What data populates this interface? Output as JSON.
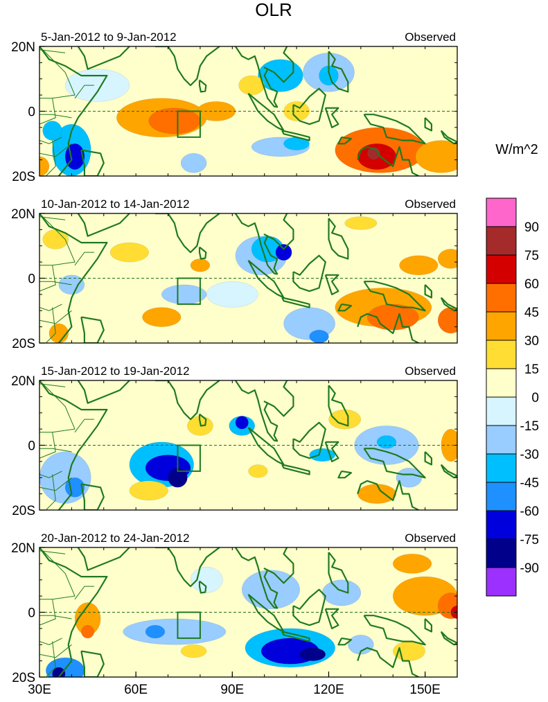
{
  "chart_data": {
    "type": "heatmap",
    "title": "OLR",
    "units": "W/m^2",
    "x_range": [
      30,
      160
    ],
    "y_range": [
      -20,
      20
    ],
    "xticks": [
      {
        "value": 30,
        "label": "30E"
      },
      {
        "value": 60,
        "label": "60E"
      },
      {
        "value": 90,
        "label": "90E"
      },
      {
        "value": 120,
        "label": "120E"
      },
      {
        "value": 150,
        "label": "150E"
      }
    ],
    "yticks": [
      {
        "value": 20,
        "label": "20N"
      },
      {
        "value": 0,
        "label": "0"
      },
      {
        "value": -20,
        "label": "20S"
      }
    ],
    "colorbar": {
      "labels": [
        "90",
        "75",
        "60",
        "45",
        "30",
        "15",
        "0",
        "-15",
        "-30",
        "-45",
        "-60",
        "-75",
        "-90"
      ],
      "colors": [
        "#ff66cc",
        "#a52a2a",
        "#d40000",
        "#ff6f00",
        "#ffa500",
        "#ffdd33",
        "#ffffcc",
        "#d6f5ff",
        "#99ccff",
        "#00bfff",
        "#1e90ff",
        "#0000dd",
        "#00008b",
        "#9b30ff"
      ]
    },
    "panels": [
      {
        "period": "5-Jan-2012 to 9-Jan-2012",
        "label": "Observed",
        "anomalies": [
          {
            "lon": 68,
            "lat": -2,
            "rx": 14,
            "ry": 6,
            "value": 30
          },
          {
            "lon": 72,
            "lat": -3,
            "rx": 8,
            "ry": 4,
            "value": 45
          },
          {
            "lon": 85,
            "lat": 0,
            "rx": 6,
            "ry": 3,
            "value": 30
          },
          {
            "lon": 136,
            "lat": -12,
            "rx": 14,
            "ry": 7,
            "value": 45
          },
          {
            "lon": 135,
            "lat": -14,
            "rx": 6,
            "ry": 4,
            "value": 60
          },
          {
            "lon": 134,
            "lat": -13,
            "rx": 2,
            "ry": 2,
            "value": 75
          },
          {
            "lon": 155,
            "lat": -14,
            "rx": 8,
            "ry": 5,
            "value": 30
          },
          {
            "lon": 30,
            "lat": -17,
            "rx": 3,
            "ry": 3,
            "value": 30
          },
          {
            "lon": 40,
            "lat": -12,
            "rx": 6,
            "ry": 8,
            "value": -45
          },
          {
            "lon": 41,
            "lat": -14,
            "rx": 3,
            "ry": 4,
            "value": -75
          },
          {
            "lon": 34,
            "lat": -6,
            "rx": 3,
            "ry": 3,
            "value": -45
          },
          {
            "lon": 105,
            "lat": 11,
            "rx": 7,
            "ry": 5,
            "value": -45
          },
          {
            "lon": 120,
            "lat": 12,
            "rx": 8,
            "ry": 6,
            "value": -30
          },
          {
            "lon": 120,
            "lat": 11,
            "rx": 3,
            "ry": 3,
            "value": -45
          },
          {
            "lon": 105,
            "lat": -11,
            "rx": 9,
            "ry": 3,
            "value": -30
          },
          {
            "lon": 110,
            "lat": -10,
            "rx": 4,
            "ry": 2,
            "value": -45
          },
          {
            "lon": 78,
            "lat": -16,
            "rx": 4,
            "ry": 3,
            "value": -30
          },
          {
            "lon": 48,
            "lat": 8,
            "rx": 10,
            "ry": 5,
            "value": -15
          },
          {
            "lon": 96,
            "lat": 8,
            "rx": 4,
            "ry": 3,
            "value": 15
          },
          {
            "lon": 110,
            "lat": 0,
            "rx": 4,
            "ry": 3,
            "value": 15
          }
        ]
      },
      {
        "period": "10-Jan-2012 to 14-Jan-2012",
        "label": "Observed",
        "anomalies": [
          {
            "lon": 99,
            "lat": 7,
            "rx": 8,
            "ry": 6,
            "value": -30
          },
          {
            "lon": 101,
            "lat": 9,
            "rx": 5,
            "ry": 4,
            "value": -45
          },
          {
            "lon": 106,
            "lat": 8,
            "rx": 2.5,
            "ry": 2.5,
            "value": -75
          },
          {
            "lon": 114,
            "lat": -14,
            "rx": 8,
            "ry": 5,
            "value": -30
          },
          {
            "lon": 117,
            "lat": -18,
            "rx": 3,
            "ry": 2,
            "value": -60
          },
          {
            "lon": 137,
            "lat": -9,
            "rx": 15,
            "ry": 6,
            "value": 30
          },
          {
            "lon": 140,
            "lat": -12,
            "rx": 8,
            "ry": 4,
            "value": 45
          },
          {
            "lon": 158,
            "lat": -13,
            "rx": 4,
            "ry": 4,
            "value": 45
          },
          {
            "lon": 148,
            "lat": 4,
            "rx": 6,
            "ry": 3,
            "value": 30
          },
          {
            "lon": 158,
            "lat": 6,
            "rx": 4,
            "ry": 3,
            "value": 30
          },
          {
            "lon": 68,
            "lat": -12,
            "rx": 6,
            "ry": 3,
            "value": 30
          },
          {
            "lon": 80,
            "lat": 4,
            "rx": 3,
            "ry": 2,
            "value": 30
          },
          {
            "lon": 36,
            "lat": -17,
            "rx": 3,
            "ry": 3,
            "value": 30
          },
          {
            "lon": 130,
            "lat": 17,
            "rx": 5,
            "ry": 2,
            "value": 15
          },
          {
            "lon": 58,
            "lat": 8,
            "rx": 6,
            "ry": 3,
            "value": 15
          },
          {
            "lon": 75,
            "lat": -5,
            "rx": 7,
            "ry": 3,
            "value": -30
          },
          {
            "lon": 40,
            "lat": -2,
            "rx": 4,
            "ry": 3,
            "value": -30
          },
          {
            "lon": 90,
            "lat": -5,
            "rx": 8,
            "ry": 4,
            "value": -15
          },
          {
            "lon": 35,
            "lat": 12,
            "rx": 4,
            "ry": 3,
            "value": 15
          }
        ]
      },
      {
        "period": "15-Jan-2012 to 19-Jan-2012",
        "label": "Observed",
        "anomalies": [
          {
            "lon": 68,
            "lat": -6,
            "rx": 10,
            "ry": 7,
            "value": -45
          },
          {
            "lon": 70,
            "lat": -7,
            "rx": 7,
            "ry": 4,
            "value": -75
          },
          {
            "lon": 73,
            "lat": -10,
            "rx": 3,
            "ry": 3,
            "value": -90
          },
          {
            "lon": 38,
            "lat": -10,
            "rx": 8,
            "ry": 8,
            "value": -30
          },
          {
            "lon": 41,
            "lat": -13,
            "rx": 3,
            "ry": 3,
            "value": -60
          },
          {
            "lon": 93,
            "lat": 6,
            "rx": 4,
            "ry": 3,
            "value": -45
          },
          {
            "lon": 93,
            "lat": 7,
            "rx": 2,
            "ry": 2,
            "value": -75
          },
          {
            "lon": 138,
            "lat": 0,
            "rx": 10,
            "ry": 6,
            "value": -30
          },
          {
            "lon": 138,
            "lat": 1,
            "rx": 3,
            "ry": 2,
            "value": -45
          },
          {
            "lon": 118,
            "lat": -3,
            "rx": 4,
            "ry": 2,
            "value": -45
          },
          {
            "lon": 145,
            "lat": -10,
            "rx": 4,
            "ry": 3,
            "value": -30
          },
          {
            "lon": 64,
            "lat": -14,
            "rx": 6,
            "ry": 3,
            "value": 15
          },
          {
            "lon": 135,
            "lat": -15,
            "rx": 6,
            "ry": 3,
            "value": 30
          },
          {
            "lon": 125,
            "lat": 8,
            "rx": 5,
            "ry": 3,
            "value": 15
          },
          {
            "lon": 158,
            "lat": 0,
            "rx": 3,
            "ry": 5,
            "value": 30
          },
          {
            "lon": 98,
            "lat": -8,
            "rx": 3,
            "ry": 2,
            "value": 15
          },
          {
            "lon": 80,
            "lat": 6,
            "rx": 4,
            "ry": 3,
            "value": 15
          }
        ]
      },
      {
        "period": "20-Jan-2012 to 24-Jan-2012",
        "label": "Observed",
        "anomalies": [
          {
            "lon": 108,
            "lat": -11,
            "rx": 14,
            "ry": 6,
            "value": -45
          },
          {
            "lon": 108,
            "lat": -12,
            "rx": 9,
            "ry": 4,
            "value": -75
          },
          {
            "lon": 115,
            "lat": -13,
            "rx": 4,
            "ry": 2,
            "value": -90
          },
          {
            "lon": 72,
            "lat": -6,
            "rx": 16,
            "ry": 4,
            "value": -30
          },
          {
            "lon": 66,
            "lat": -6,
            "rx": 3,
            "ry": 2,
            "value": -60
          },
          {
            "lon": 38,
            "lat": -18,
            "rx": 6,
            "ry": 4,
            "value": -60
          },
          {
            "lon": 36,
            "lat": -19,
            "rx": 2,
            "ry": 2,
            "value": -90
          },
          {
            "lon": 102,
            "lat": 7,
            "rx": 9,
            "ry": 6,
            "value": -30
          },
          {
            "lon": 124,
            "lat": 6,
            "rx": 6,
            "ry": 4,
            "value": -30
          },
          {
            "lon": 130,
            "lat": -10,
            "rx": 4,
            "ry": 3,
            "value": -30
          },
          {
            "lon": 150,
            "lat": 5,
            "rx": 10,
            "ry": 6,
            "value": 30
          },
          {
            "lon": 158,
            "lat": 2,
            "rx": 4,
            "ry": 4,
            "value": 45
          },
          {
            "lon": 160,
            "lat": 0,
            "rx": 2,
            "ry": 2,
            "value": 60
          },
          {
            "lon": 146,
            "lat": 15,
            "rx": 6,
            "ry": 3,
            "value": 30
          },
          {
            "lon": 45,
            "lat": -2,
            "rx": 4,
            "ry": 5,
            "value": 30
          },
          {
            "lon": 45,
            "lat": -6,
            "rx": 2,
            "ry": 2,
            "value": 45
          },
          {
            "lon": 78,
            "lat": -12,
            "rx": 4,
            "ry": 2,
            "value": 15
          },
          {
            "lon": 145,
            "lat": -12,
            "rx": 5,
            "ry": 3,
            "value": 15
          },
          {
            "lon": 82,
            "lat": 10,
            "rx": 5,
            "ry": 4,
            "value": -15
          }
        ]
      }
    ]
  }
}
